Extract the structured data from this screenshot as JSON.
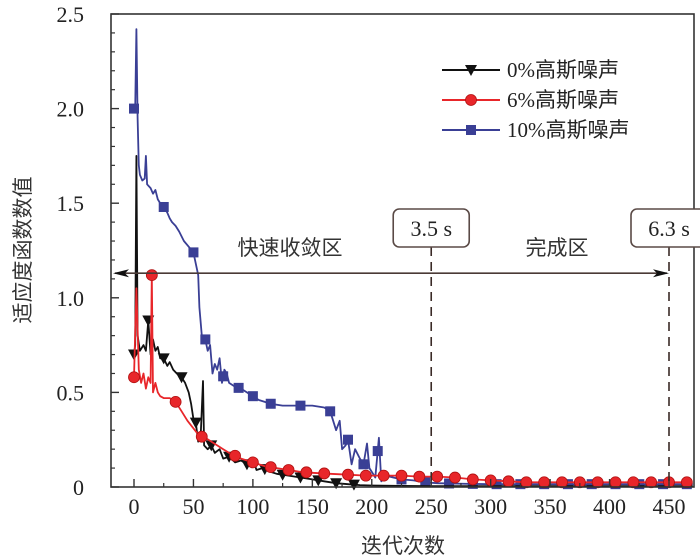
{
  "chart_data": {
    "type": "line",
    "title": "",
    "xlabel": "迭代次数",
    "ylabel": "适应度函数数值",
    "xlim": [
      -15,
      470
    ],
    "ylim": [
      0,
      2.5
    ],
    "xticks": [
      0,
      50,
      100,
      150,
      200,
      250,
      300,
      350,
      400,
      450
    ],
    "xtick_labels": [
      "0",
      "50",
      "100",
      "150",
      "200",
      "250",
      "300",
      "350",
      "400",
      "450"
    ],
    "yticks": [
      0,
      0.5,
      1.0,
      1.5,
      2.0,
      2.5
    ],
    "ytick_labels": [
      "0",
      "0.5",
      "1.0",
      "1.5",
      "2.0",
      "2.5"
    ],
    "grid": false,
    "legend_position": "top-right",
    "series": [
      {
        "name": "0%高斯噪声",
        "color": "#111111",
        "marker": "triangle-down",
        "points": [
          [
            0,
            0.7
          ],
          [
            1,
            0.75
          ],
          [
            2,
            1.75
          ],
          [
            3,
            0.8
          ],
          [
            5,
            0.72
          ],
          [
            8,
            0.75
          ],
          [
            10,
            0.72
          ],
          [
            12,
            0.88
          ],
          [
            14,
            0.7
          ],
          [
            16,
            0.78
          ],
          [
            18,
            0.72
          ],
          [
            20,
            0.74
          ],
          [
            22,
            0.68
          ],
          [
            25,
            0.68
          ],
          [
            28,
            0.64
          ],
          [
            30,
            0.66
          ],
          [
            33,
            0.62
          ],
          [
            36,
            0.6
          ],
          [
            40,
            0.58
          ],
          [
            43,
            0.55
          ],
          [
            46,
            0.5
          ],
          [
            48,
            0.44
          ],
          [
            50,
            0.36
          ],
          [
            52,
            0.34
          ],
          [
            54,
            0.24
          ],
          [
            56,
            0.26
          ],
          [
            58,
            0.56
          ],
          [
            59,
            0.22
          ],
          [
            62,
            0.2
          ],
          [
            65,
            0.22
          ],
          [
            68,
            0.18
          ],
          [
            72,
            0.2
          ],
          [
            75,
            0.15
          ],
          [
            80,
            0.16
          ],
          [
            85,
            0.13
          ],
          [
            90,
            0.14
          ],
          [
            95,
            0.12
          ],
          [
            100,
            0.15
          ],
          [
            103,
            0.09
          ],
          [
            108,
            0.1
          ],
          [
            115,
            0.08
          ],
          [
            120,
            0.07
          ],
          [
            130,
            0.06
          ],
          [
            140,
            0.05
          ],
          [
            150,
            0.04
          ],
          [
            160,
            0.03
          ],
          [
            170,
            0.02
          ],
          [
            180,
            0.015
          ],
          [
            190,
            0.01
          ],
          [
            200,
            0.008
          ],
          [
            225,
            0.006
          ],
          [
            250,
            0.005
          ],
          [
            300,
            0.005
          ],
          [
            350,
            0.005
          ],
          [
            400,
            0.005
          ],
          [
            470,
            0.005
          ]
        ],
        "marker_x": [
          0,
          12,
          25,
          40,
          52,
          65,
          80,
          95,
          110,
          125,
          140,
          155,
          170,
          185
        ]
      },
      {
        "name": "6%高斯噪声",
        "color": "#e8262a",
        "marker": "circle",
        "points": [
          [
            0,
            0.58
          ],
          [
            2,
            1.05
          ],
          [
            4,
            0.62
          ],
          [
            6,
            0.55
          ],
          [
            8,
            0.6
          ],
          [
            10,
            0.52
          ],
          [
            12,
            0.58
          ],
          [
            14,
            0.55
          ],
          [
            15,
            1.12
          ],
          [
            16,
            0.5
          ],
          [
            18,
            0.55
          ],
          [
            20,
            0.5
          ],
          [
            22,
            0.48
          ],
          [
            25,
            0.47
          ],
          [
            30,
            0.47
          ],
          [
            35,
            0.45
          ],
          [
            40,
            0.4
          ],
          [
            45,
            0.35
          ],
          [
            50,
            0.31
          ],
          [
            55,
            0.27
          ],
          [
            60,
            0.26
          ],
          [
            65,
            0.24
          ],
          [
            70,
            0.22
          ],
          [
            75,
            0.2
          ],
          [
            80,
            0.18
          ],
          [
            90,
            0.15
          ],
          [
            100,
            0.13
          ],
          [
            110,
            0.11
          ],
          [
            120,
            0.1
          ],
          [
            130,
            0.09
          ],
          [
            140,
            0.08
          ],
          [
            150,
            0.075
          ],
          [
            165,
            0.07
          ],
          [
            180,
            0.065
          ],
          [
            195,
            0.06
          ],
          [
            210,
            0.06
          ],
          [
            225,
            0.06
          ],
          [
            240,
            0.055
          ],
          [
            255,
            0.055
          ],
          [
            270,
            0.05
          ],
          [
            285,
            0.04
          ],
          [
            300,
            0.035
          ],
          [
            315,
            0.03
          ],
          [
            330,
            0.025
          ],
          [
            345,
            0.025
          ],
          [
            360,
            0.025
          ],
          [
            375,
            0.025
          ],
          [
            390,
            0.025
          ],
          [
            405,
            0.025
          ],
          [
            420,
            0.025
          ],
          [
            435,
            0.025
          ],
          [
            450,
            0.025
          ],
          [
            465,
            0.025
          ]
        ],
        "marker_x": [
          0,
          15,
          35,
          57,
          85,
          100,
          115,
          130,
          145,
          160,
          180,
          195,
          210,
          225,
          240,
          255,
          270,
          285,
          300,
          315,
          330,
          345,
          360,
          375,
          390,
          405,
          420,
          435,
          450,
          465
        ]
      },
      {
        "name": "10%高斯噪声",
        "color": "#3a3f95",
        "marker": "square",
        "points": [
          [
            0,
            2.0
          ],
          [
            1,
            2.0
          ],
          [
            2,
            2.42
          ],
          [
            3,
            1.95
          ],
          [
            4,
            1.7
          ],
          [
            5,
            1.65
          ],
          [
            7,
            1.62
          ],
          [
            9,
            1.63
          ],
          [
            10,
            1.75
          ],
          [
            11,
            1.6
          ],
          [
            14,
            1.58
          ],
          [
            16,
            1.55
          ],
          [
            18,
            1.57
          ],
          [
            20,
            1.52
          ],
          [
            22,
            1.5
          ],
          [
            25,
            1.48
          ],
          [
            28,
            1.45
          ],
          [
            30,
            1.42
          ],
          [
            32,
            1.4
          ],
          [
            35,
            1.38
          ],
          [
            38,
            1.35
          ],
          [
            42,
            1.3
          ],
          [
            46,
            1.27
          ],
          [
            50,
            1.24
          ],
          [
            52,
            1.18
          ],
          [
            54,
            1.12
          ],
          [
            55,
            0.95
          ],
          [
            57,
            0.8
          ],
          [
            60,
            0.78
          ],
          [
            62,
            0.72
          ],
          [
            64,
            0.75
          ],
          [
            66,
            0.6
          ],
          [
            68,
            0.65
          ],
          [
            70,
            0.62
          ],
          [
            72,
            0.68
          ],
          [
            74,
            0.55
          ],
          [
            76,
            0.62
          ],
          [
            78,
            0.6
          ],
          [
            80,
            0.55
          ],
          [
            85,
            0.53
          ],
          [
            90,
            0.52
          ],
          [
            95,
            0.5
          ],
          [
            100,
            0.48
          ],
          [
            105,
            0.46
          ],
          [
            110,
            0.45
          ],
          [
            115,
            0.44
          ],
          [
            125,
            0.43
          ],
          [
            140,
            0.43
          ],
          [
            150,
            0.43
          ],
          [
            160,
            0.42
          ],
          [
            165,
            0.4
          ],
          [
            170,
            0.3
          ],
          [
            173,
            0.35
          ],
          [
            175,
            0.2
          ],
          [
            178,
            0.22
          ],
          [
            180,
            0.25
          ],
          [
            183,
            0.12
          ],
          [
            186,
            0.2
          ],
          [
            190,
            0.15
          ],
          [
            193,
            0.12
          ],
          [
            196,
            0.23
          ],
          [
            198,
            0.1
          ],
          [
            200,
            0.08
          ],
          [
            203,
            0.05
          ],
          [
            206,
            0.26
          ],
          [
            208,
            0.03
          ],
          [
            212,
            0.06
          ],
          [
            218,
            0.05
          ],
          [
            225,
            0.04
          ],
          [
            235,
            0.035
          ],
          [
            245,
            0.025
          ],
          [
            255,
            0.02
          ],
          [
            270,
            0.018
          ],
          [
            300,
            0.015
          ],
          [
            350,
            0.015
          ],
          [
            400,
            0.015
          ],
          [
            470,
            0.015
          ]
        ],
        "marker_x": [
          0,
          25,
          50,
          60,
          75,
          88,
          100,
          115,
          140,
          165,
          180,
          193,
          205,
          225,
          245,
          265,
          285,
          305,
          325,
          345,
          365,
          385,
          405,
          425,
          445,
          465
        ]
      }
    ],
    "annotations": [
      {
        "text": "快速收敛区",
        "x_range": [
          -15,
          250
        ]
      },
      {
        "text": "完成区",
        "x_range": [
          250,
          450
        ]
      },
      {
        "text": "3.5 s",
        "x": 250,
        "type": "boxed-label-with-dashed-line"
      },
      {
        "text": "6.3 s",
        "x": 450,
        "type": "boxed-label-with-dashed-line"
      }
    ],
    "arrow_y": 1.13
  }
}
